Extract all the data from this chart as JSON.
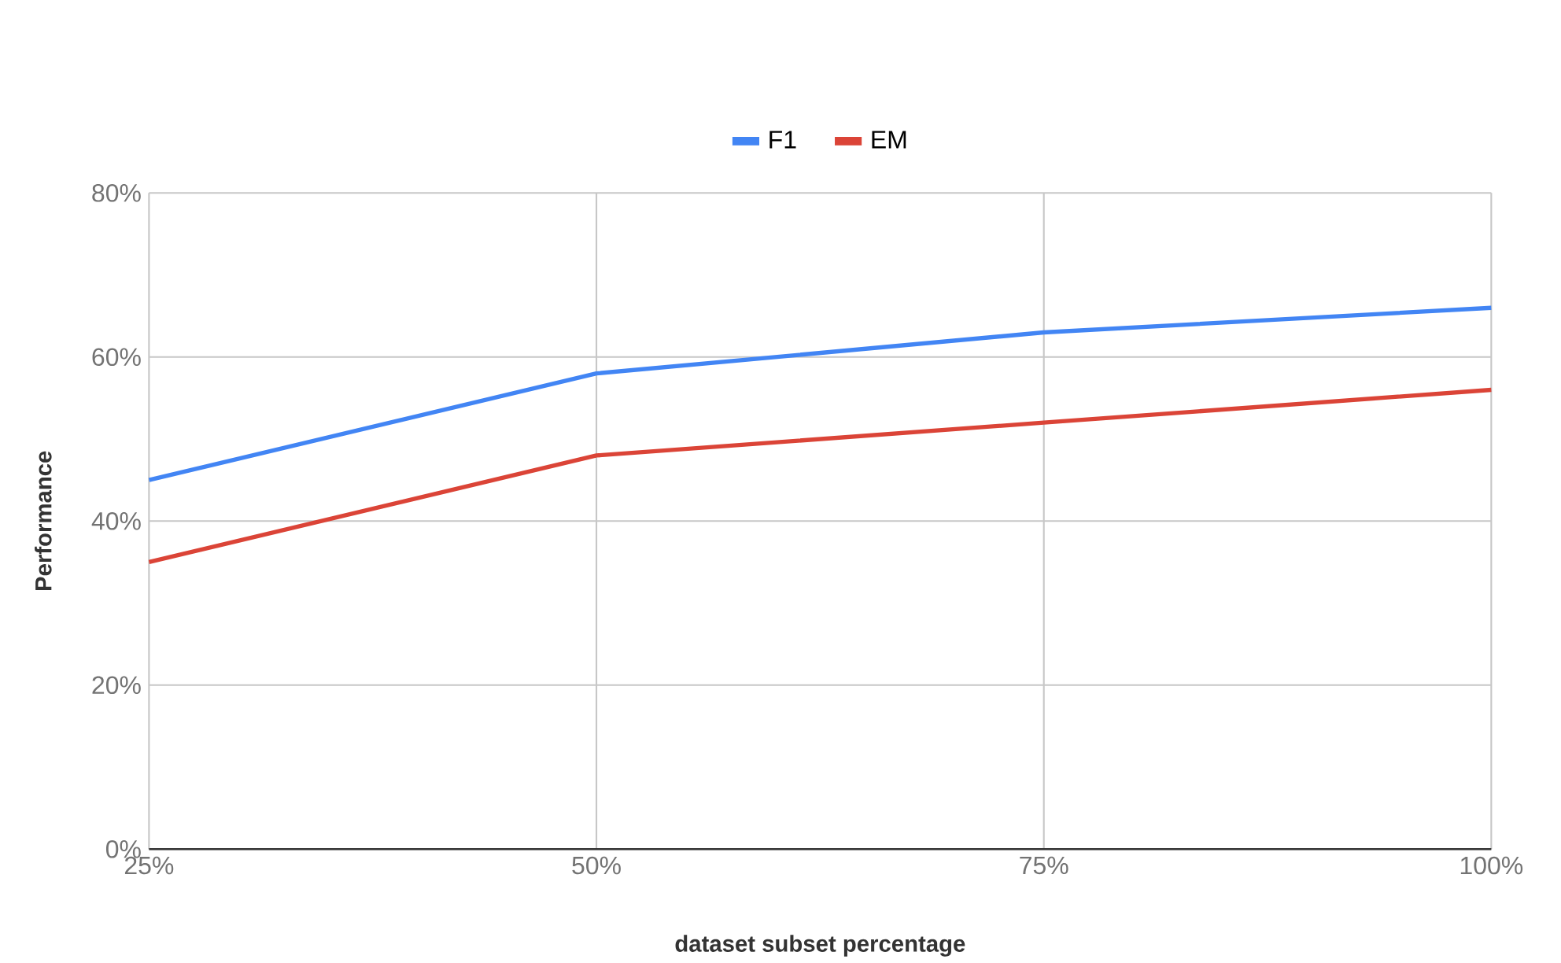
{
  "chart_data": {
    "type": "line",
    "xlabel": "dataset subset percentage",
    "ylabel": "Performance",
    "x": [
      25,
      50,
      75,
      100
    ],
    "series": [
      {
        "name": "F1",
        "color": "#4285f4",
        "values": [
          45,
          58,
          63,
          66
        ]
      },
      {
        "name": "EM",
        "color": "#db4437",
        "values": [
          35,
          48,
          52,
          56
        ]
      }
    ],
    "xlim": [
      25,
      100
    ],
    "xticks": [
      {
        "value": 25,
        "label": "25%"
      },
      {
        "value": 50,
        "label": "50%"
      },
      {
        "value": 75,
        "label": "75%"
      },
      {
        "value": 100,
        "label": "100%"
      }
    ],
    "ylim": [
      0,
      80
    ],
    "yticks": [
      {
        "value": 0,
        "label": "0%"
      },
      {
        "value": 20,
        "label": "20%"
      },
      {
        "value": 40,
        "label": "40%"
      },
      {
        "value": 60,
        "label": "60%"
      },
      {
        "value": 80,
        "label": "80%"
      }
    ],
    "grid": true,
    "legend": "top",
    "marker": "none",
    "line_style": "solid"
  }
}
